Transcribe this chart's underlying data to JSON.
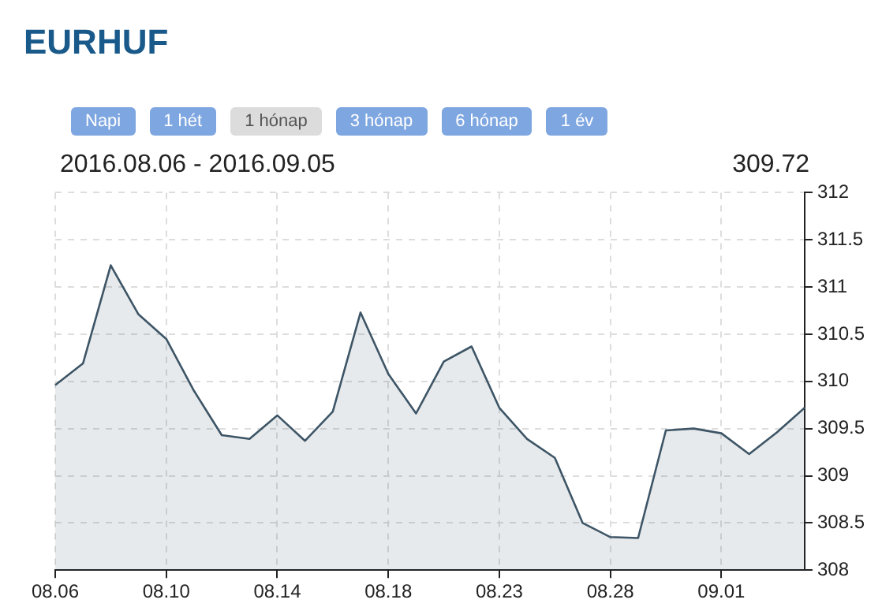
{
  "chart_data": {
    "type": "area",
    "title": "EURHUF",
    "subtitle": "2016.08.06 - 2016.09.05",
    "annotations": [
      "Napi",
      "1 hét",
      "1 hónap",
      "3 hónap",
      "6 hónap",
      "1 év",
      "309.72"
    ],
    "categories": [
      "08.06",
      null,
      null,
      null,
      "08.10",
      null,
      null,
      null,
      "08.14",
      null,
      null,
      null,
      "08.18",
      null,
      null,
      null,
      "08.23",
      null,
      null,
      null,
      "08.28",
      null,
      null,
      null,
      "09.01",
      null,
      null,
      null
    ],
    "series": [
      {
        "color": "#3d5566",
        "values": [
          309.96,
          310.19,
          311.23,
          310.71,
          310.45,
          309.9,
          309.43,
          309.39,
          309.64,
          309.37,
          309.68,
          310.73,
          310.08,
          309.66,
          310.21,
          310.37,
          309.72,
          309.39,
          309.19,
          308.5,
          308.35,
          308.34,
          309.48,
          309.5,
          309.45,
          309.23,
          309.46,
          309.72
        ]
      }
    ],
    "ylim": [
      308,
      312
    ],
    "yticks": [
      308,
      308.5,
      309,
      309.5,
      310,
      310.5,
      311,
      311.5,
      312
    ],
    "grid": true,
    "legend": false,
    "marker": "none",
    "line_style": "solid"
  }
}
